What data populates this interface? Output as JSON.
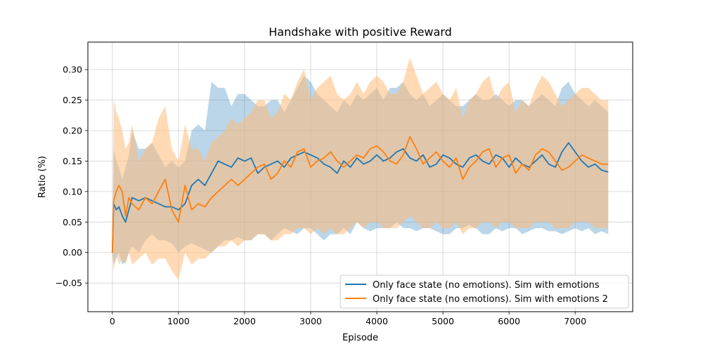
{
  "chart_data": {
    "type": "line",
    "title": "Handshake with positive Reward",
    "xlabel": "Episode",
    "ylabel": "Ratio (%)",
    "xlim": [
      -370,
      7870
    ],
    "ylim": [
      -0.097,
      0.345
    ],
    "xticks": [
      0,
      1000,
      2000,
      3000,
      4000,
      5000,
      6000,
      7000
    ],
    "xtick_labels": [
      "0",
      "1000",
      "2000",
      "3000",
      "4000",
      "5000",
      "6000",
      "7000"
    ],
    "yticks": [
      -0.05,
      0.0,
      0.05,
      0.1,
      0.15,
      0.2,
      0.25,
      0.3
    ],
    "ytick_labels": [
      "−0.05",
      "0.00",
      "0.05",
      "0.10",
      "0.15",
      "0.20",
      "0.25",
      "0.30"
    ],
    "grid": true,
    "legend_position": "lower-right",
    "series": [
      {
        "name": "Only face state (no emotions). Sim with emotions",
        "color": "#1f77b4",
        "band_color": "#1f77b4",
        "x": [
          0,
          20,
          60,
          100,
          150,
          200,
          250,
          300,
          400,
          500,
          600,
          700,
          800,
          900,
          1000,
          1100,
          1200,
          1300,
          1400,
          1500,
          1600,
          1700,
          1800,
          1900,
          2000,
          2100,
          2200,
          2300,
          2400,
          2500,
          2600,
          2700,
          2800,
          2900,
          3000,
          3100,
          3200,
          3300,
          3400,
          3500,
          3600,
          3700,
          3800,
          3900,
          4000,
          4100,
          4200,
          4300,
          4400,
          4500,
          4600,
          4700,
          4800,
          4900,
          5000,
          5100,
          5200,
          5300,
          5400,
          5500,
          5600,
          5700,
          5800,
          5900,
          6000,
          6100,
          6200,
          6300,
          6400,
          6500,
          6600,
          6700,
          6800,
          6900,
          7000,
          7100,
          7200,
          7300,
          7400,
          7500
        ],
        "y": [
          0.0,
          0.08,
          0.07,
          0.075,
          0.06,
          0.05,
          0.07,
          0.09,
          0.085,
          0.09,
          0.085,
          0.08,
          0.075,
          0.075,
          0.07,
          0.08,
          0.11,
          0.12,
          0.11,
          0.13,
          0.15,
          0.145,
          0.14,
          0.155,
          0.15,
          0.155,
          0.13,
          0.14,
          0.145,
          0.15,
          0.14,
          0.155,
          0.16,
          0.165,
          0.16,
          0.155,
          0.145,
          0.14,
          0.13,
          0.15,
          0.14,
          0.155,
          0.145,
          0.15,
          0.16,
          0.15,
          0.155,
          0.165,
          0.17,
          0.155,
          0.15,
          0.16,
          0.14,
          0.145,
          0.16,
          0.155,
          0.145,
          0.14,
          0.155,
          0.16,
          0.15,
          0.145,
          0.16,
          0.155,
          0.14,
          0.155,
          0.145,
          0.14,
          0.15,
          0.16,
          0.145,
          0.14,
          0.165,
          0.18,
          0.165,
          0.15,
          0.14,
          0.145,
          0.135,
          0.132
        ],
        "lower": [
          0.0,
          -0.02,
          -0.01,
          0.0,
          -0.02,
          -0.015,
          0.0,
          0.01,
          0.0,
          0.02,
          0.03,
          0.02,
          0.02,
          0.015,
          0.0,
          0.01,
          0.015,
          0.01,
          0.005,
          0.0,
          0.01,
          0.02,
          0.02,
          0.025,
          0.02,
          0.02,
          0.03,
          0.03,
          0.02,
          0.03,
          0.04,
          0.035,
          0.03,
          0.04,
          0.04,
          0.03,
          0.02,
          0.03,
          0.03,
          0.04,
          0.03,
          0.05,
          0.04,
          0.035,
          0.04,
          0.04,
          0.04,
          0.05,
          0.04,
          0.04,
          0.035,
          0.04,
          0.04,
          0.035,
          0.03,
          0.03,
          0.04,
          0.04,
          0.045,
          0.04,
          0.03,
          0.03,
          0.04,
          0.035,
          0.04,
          0.04,
          0.03,
          0.035,
          0.04,
          0.04,
          0.035,
          0.035,
          0.03,
          0.035,
          0.04,
          0.035,
          0.04,
          0.03,
          0.035,
          0.03
        ],
        "upper": [
          0.0,
          0.17,
          0.15,
          0.14,
          0.12,
          0.14,
          0.16,
          0.2,
          0.17,
          0.17,
          0.18,
          0.16,
          0.14,
          0.15,
          0.14,
          0.15,
          0.2,
          0.21,
          0.2,
          0.28,
          0.27,
          0.27,
          0.24,
          0.26,
          0.26,
          0.25,
          0.24,
          0.24,
          0.25,
          0.25,
          0.23,
          0.25,
          0.27,
          0.29,
          0.28,
          0.26,
          0.25,
          0.24,
          0.23,
          0.25,
          0.24,
          0.26,
          0.25,
          0.26,
          0.27,
          0.25,
          0.27,
          0.27,
          0.28,
          0.26,
          0.25,
          0.26,
          0.24,
          0.25,
          0.26,
          0.25,
          0.24,
          0.24,
          0.25,
          0.26,
          0.25,
          0.25,
          0.26,
          0.25,
          0.24,
          0.25,
          0.25,
          0.24,
          0.25,
          0.26,
          0.25,
          0.24,
          0.27,
          0.28,
          0.26,
          0.25,
          0.24,
          0.25,
          0.24,
          0.23
        ]
      },
      {
        "name": "Only face state (no emotions). Sim with emotions 2",
        "color": "#ff7f0e",
        "band_color": "#ffbb78",
        "x": [
          0,
          20,
          60,
          100,
          150,
          200,
          250,
          300,
          400,
          500,
          600,
          700,
          800,
          900,
          1000,
          1100,
          1200,
          1300,
          1400,
          1500,
          1600,
          1700,
          1800,
          1900,
          2000,
          2100,
          2200,
          2300,
          2400,
          2500,
          2600,
          2700,
          2800,
          2900,
          3000,
          3100,
          3200,
          3300,
          3400,
          3500,
          3600,
          3700,
          3800,
          3900,
          4000,
          4100,
          4200,
          4300,
          4400,
          4500,
          4600,
          4700,
          4800,
          4900,
          5000,
          5100,
          5200,
          5300,
          5400,
          5500,
          5600,
          5700,
          5800,
          5900,
          6000,
          6100,
          6200,
          6300,
          6400,
          6500,
          6600,
          6700,
          6800,
          6900,
          7000,
          7100,
          7200,
          7300,
          7400,
          7500
        ],
        "y": [
          0.0,
          0.085,
          0.1,
          0.11,
          0.1,
          0.06,
          0.09,
          0.08,
          0.07,
          0.09,
          0.08,
          0.1,
          0.12,
          0.07,
          0.05,
          0.11,
          0.07,
          0.08,
          0.075,
          0.09,
          0.1,
          0.11,
          0.12,
          0.11,
          0.12,
          0.13,
          0.14,
          0.145,
          0.12,
          0.13,
          0.15,
          0.14,
          0.165,
          0.17,
          0.14,
          0.15,
          0.155,
          0.165,
          0.15,
          0.14,
          0.15,
          0.16,
          0.155,
          0.17,
          0.175,
          0.165,
          0.15,
          0.145,
          0.16,
          0.19,
          0.17,
          0.145,
          0.155,
          0.165,
          0.15,
          0.14,
          0.155,
          0.12,
          0.14,
          0.15,
          0.165,
          0.17,
          0.14,
          0.155,
          0.16,
          0.13,
          0.145,
          0.135,
          0.16,
          0.17,
          0.165,
          0.15,
          0.135,
          0.14,
          0.15,
          0.16,
          0.155,
          0.15,
          0.145,
          0.145
        ],
        "lower": [
          0.0,
          -0.03,
          0.0,
          -0.02,
          -0.01,
          -0.02,
          0.0,
          -0.02,
          -0.01,
          0.0,
          -0.02,
          -0.01,
          -0.01,
          -0.03,
          -0.045,
          0.0,
          -0.02,
          -0.01,
          -0.01,
          0.0,
          0.01,
          0.01,
          0.02,
          0.01,
          0.02,
          0.02,
          0.03,
          0.03,
          0.02,
          0.02,
          0.03,
          0.03,
          0.04,
          0.04,
          0.03,
          0.04,
          0.03,
          0.04,
          0.03,
          0.03,
          0.04,
          0.05,
          0.04,
          0.05,
          0.05,
          0.04,
          0.04,
          0.04,
          0.05,
          0.06,
          0.05,
          0.04,
          0.04,
          0.05,
          0.04,
          0.04,
          0.05,
          0.03,
          0.04,
          0.04,
          0.05,
          0.05,
          0.04,
          0.05,
          0.05,
          0.04,
          0.04,
          0.04,
          0.05,
          0.05,
          0.05,
          0.04,
          0.04,
          0.04,
          0.05,
          0.05,
          0.05,
          0.04,
          0.04,
          0.04
        ],
        "upper": [
          0.0,
          0.25,
          0.23,
          0.22,
          0.2,
          0.17,
          0.18,
          0.21,
          0.15,
          0.17,
          0.18,
          0.22,
          0.24,
          0.17,
          0.15,
          0.21,
          0.17,
          0.17,
          0.15,
          0.18,
          0.19,
          0.2,
          0.22,
          0.21,
          0.22,
          0.23,
          0.25,
          0.25,
          0.22,
          0.23,
          0.26,
          0.25,
          0.28,
          0.3,
          0.25,
          0.27,
          0.28,
          0.29,
          0.26,
          0.25,
          0.26,
          0.28,
          0.26,
          0.28,
          0.29,
          0.28,
          0.26,
          0.26,
          0.28,
          0.32,
          0.29,
          0.26,
          0.27,
          0.28,
          0.26,
          0.25,
          0.27,
          0.22,
          0.25,
          0.26,
          0.28,
          0.29,
          0.25,
          0.27,
          0.28,
          0.23,
          0.25,
          0.24,
          0.27,
          0.29,
          0.28,
          0.26,
          0.24,
          0.25,
          0.26,
          0.27,
          0.27,
          0.26,
          0.25,
          0.25
        ]
      }
    ]
  }
}
